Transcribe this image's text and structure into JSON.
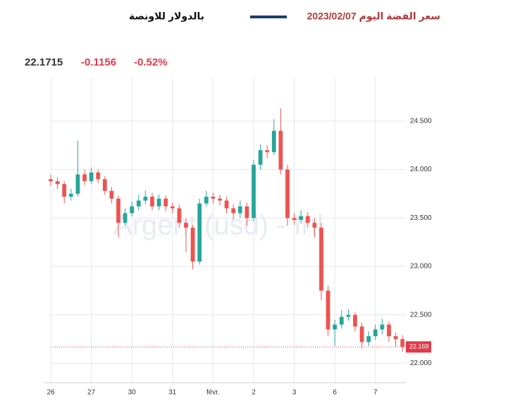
{
  "chart_data": {
    "type": "candlestick",
    "title": "سعر   الفضة اليوم 2023/02/07",
    "stats": [
      "22.1715",
      "-0.1156",
      "-0.52%"
    ],
    "watermark": "Argent (usd) - Inl",
    "up_color": "#26a69a",
    "down_color": "#ef5350",
    "grid": true,
    "series": [
      {
        "name": "بالدولار للاونصة",
        "color": "#1c3d6e",
        "x": [
          0,
          1,
          2,
          3,
          4,
          5,
          6,
          7,
          8,
          9,
          10,
          11,
          12,
          13,
          14,
          15,
          16,
          17,
          18,
          19,
          20,
          21,
          22,
          23,
          24,
          25,
          26,
          27,
          28,
          29,
          30,
          31,
          32,
          33,
          34,
          35,
          36,
          37,
          38,
          39,
          40,
          41,
          42,
          43,
          44,
          45,
          46,
          47,
          48,
          49,
          50,
          51,
          52
        ],
        "open": [
          23.9,
          23.88,
          23.85,
          23.72,
          23.75,
          23.95,
          23.88,
          23.97,
          23.9,
          23.78,
          23.7,
          23.45,
          23.55,
          23.62,
          23.68,
          23.72,
          23.62,
          23.7,
          23.62,
          23.6,
          23.45,
          23.4,
          23.05,
          23.65,
          23.72,
          23.7,
          23.68,
          23.6,
          23.55,
          23.62,
          23.5,
          24.05,
          24.2,
          24.18,
          24.4,
          24.0,
          23.5,
          23.48,
          23.52,
          23.45,
          23.4,
          22.75,
          22.35,
          22.4,
          22.48,
          22.5,
          22.38,
          22.22,
          22.28,
          22.35,
          22.4,
          22.28,
          22.25
        ],
        "high": [
          23.95,
          23.92,
          23.88,
          23.8,
          24.3,
          24.0,
          24.02,
          24.0,
          23.93,
          23.82,
          23.73,
          23.6,
          23.67,
          23.74,
          23.78,
          23.76,
          23.74,
          23.73,
          23.66,
          23.64,
          23.5,
          23.43,
          23.7,
          23.78,
          23.76,
          23.74,
          23.72,
          23.64,
          23.68,
          23.66,
          24.1,
          24.26,
          24.25,
          24.52,
          24.63,
          24.05,
          23.55,
          23.58,
          23.56,
          23.5,
          23.45,
          22.8,
          22.45,
          22.55,
          22.56,
          22.53,
          22.42,
          22.33,
          22.4,
          22.46,
          22.43,
          22.32,
          22.29
        ],
        "low": [
          23.83,
          23.8,
          23.65,
          23.68,
          23.72,
          23.84,
          23.85,
          23.86,
          23.74,
          23.65,
          23.3,
          23.42,
          23.52,
          23.58,
          23.64,
          23.58,
          23.58,
          23.57,
          23.55,
          23.4,
          23.15,
          22.97,
          23.02,
          23.62,
          23.65,
          23.63,
          23.55,
          23.48,
          23.5,
          23.42,
          23.47,
          24.0,
          24.12,
          24.15,
          23.95,
          23.42,
          23.43,
          23.44,
          23.4,
          23.3,
          22.65,
          22.28,
          22.18,
          22.36,
          22.44,
          22.33,
          22.15,
          22.18,
          22.24,
          22.3,
          22.22,
          22.17,
          22.12
        ],
        "close": [
          23.88,
          23.85,
          23.72,
          23.75,
          23.95,
          23.88,
          23.97,
          23.9,
          23.78,
          23.7,
          23.45,
          23.55,
          23.62,
          23.68,
          23.72,
          23.62,
          23.7,
          23.62,
          23.6,
          23.45,
          23.4,
          23.05,
          23.65,
          23.72,
          23.7,
          23.68,
          23.6,
          23.55,
          23.62,
          23.5,
          24.05,
          24.2,
          24.18,
          24.4,
          24.0,
          23.5,
          23.48,
          23.52,
          23.45,
          23.4,
          22.75,
          22.35,
          22.4,
          22.48,
          22.5,
          22.38,
          22.22,
          22.28,
          22.35,
          22.4,
          22.28,
          22.25,
          22.17
        ]
      }
    ],
    "last_price": {
      "value": 22.169,
      "label": "22.169",
      "color": "#e03a4a"
    },
    "xlim": [
      0,
      52.5
    ],
    "xticks": [
      {
        "value": 0,
        "label": "26"
      },
      {
        "value": 6,
        "label": "27"
      },
      {
        "value": 12,
        "label": "30"
      },
      {
        "value": 18,
        "label": "31"
      },
      {
        "value": 24,
        "label": "févr."
      },
      {
        "value": 30,
        "label": "2"
      },
      {
        "value": 36,
        "label": "3"
      },
      {
        "value": 42,
        "label": "6"
      },
      {
        "value": 48,
        "label": "7"
      }
    ],
    "ylim": [
      21.8,
      24.95
    ],
    "yticks": [
      {
        "value": 22,
        "label": "22.000"
      },
      {
        "value": 22.5,
        "label": "22.500"
      },
      {
        "value": 23,
        "label": "23.000"
      },
      {
        "value": 23.5,
        "label": "23.500"
      },
      {
        "value": 24,
        "label": "24.000"
      },
      {
        "value": 24.5,
        "label": "24.500"
      }
    ]
  }
}
